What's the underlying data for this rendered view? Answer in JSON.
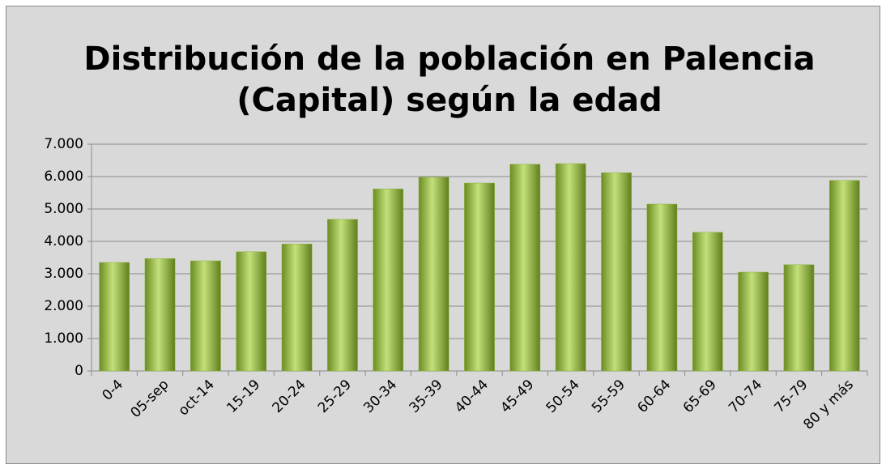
{
  "chart_data": {
    "type": "bar",
    "title": [
      "Distribución de la población en Palencia",
      "(Capital) según la edad"
    ],
    "categories": [
      "0-4",
      "05-sep",
      "oct-14",
      "15-19",
      "20-24",
      "25-29",
      "30-34",
      "35-39",
      "40-44",
      "45-49",
      "50-54",
      "55-59",
      "60-64",
      "65-69",
      "70-74",
      "75-79",
      "80 y más"
    ],
    "values": [
      3350,
      3470,
      3400,
      3680,
      3920,
      4680,
      5620,
      5980,
      5800,
      6380,
      6400,
      6120,
      5150,
      4280,
      3050,
      3280,
      5880
    ],
    "color": "#8cb43c",
    "ylim": [
      0,
      7000
    ],
    "yticks": [
      0,
      {
        "value": 1000,
        "label": "1.000"
      },
      {
        "value": 2000,
        "label": "2.000"
      },
      {
        "value": 3000,
        "label": "3.000"
      },
      {
        "value": 4000,
        "label": "4.000"
      },
      {
        "value": 5000,
        "label": "5.000"
      },
      {
        "value": 6000,
        "label": "6.000"
      },
      {
        "value": 7000,
        "label": "7.000"
      }
    ],
    "grid": true
  }
}
